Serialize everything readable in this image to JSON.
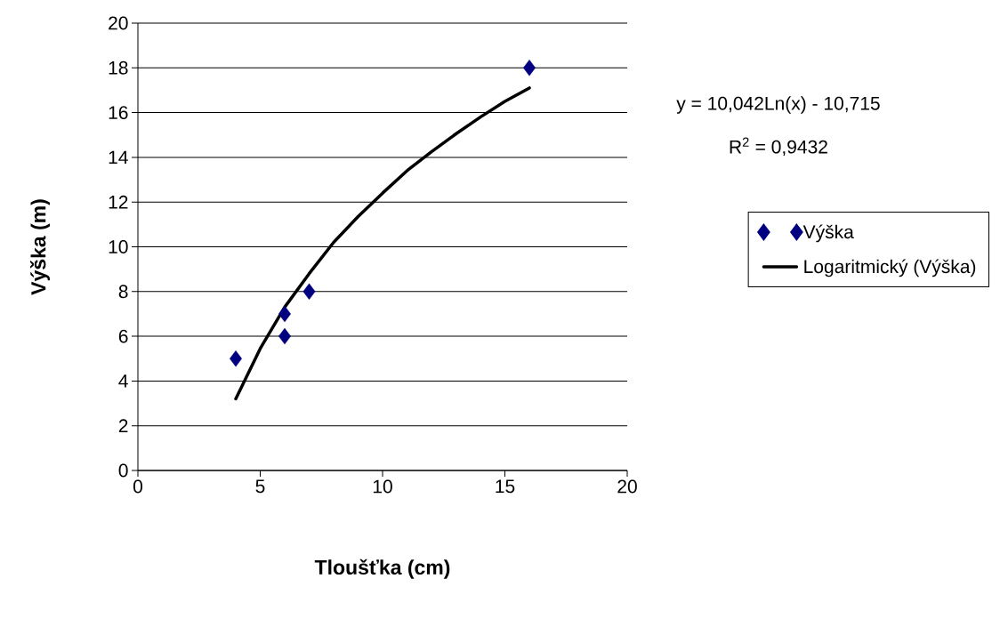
{
  "chart_data": {
    "type": "scatter",
    "xlabel": "Tloušťka (cm)",
    "ylabel": "Výška (m)",
    "annotations": [
      "y = 10,042Ln(x) - 10,715",
      "R$^{2}$ = 0,9432"
    ],
    "xlim": [
      0,
      20
    ],
    "xticks": [
      0,
      5,
      10,
      15,
      20
    ],
    "ylim": [
      0,
      20
    ],
    "yticks": [
      0,
      2,
      4,
      6,
      8,
      10,
      12,
      14,
      16,
      18,
      20
    ],
    "grid": "y",
    "legend": "right",
    "series": [
      {
        "name": "Výška",
        "marker": "diamond",
        "color": "#000080",
        "x": [
          4,
          6,
          6,
          7,
          16
        ],
        "values": [
          5,
          6,
          7,
          8,
          18
        ]
      },
      {
        "name": "Logaritmický (Výška)",
        "type": "line",
        "marker": "none",
        "line_style": "solid",
        "color": "#000000",
        "x": [
          4,
          5,
          6,
          7,
          8,
          9,
          10,
          11,
          12,
          13,
          14,
          15,
          16
        ],
        "values": [
          3.2,
          5.45,
          7.3,
          8.8,
          10.2,
          11.35,
          12.4,
          13.4,
          14.25,
          15.05,
          15.8,
          16.5,
          17.1
        ]
      }
    ]
  }
}
